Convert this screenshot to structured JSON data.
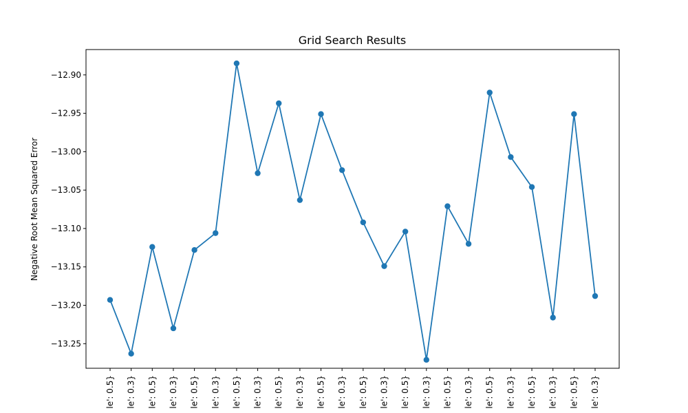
{
  "chart_data": {
    "type": "line",
    "title": "Grid Search Results",
    "xlabel": "",
    "ylabel": "Negative Root Mean Squared Error",
    "ylim": [
      -13.282,
      -12.867
    ],
    "yticks": [
      "−12.90",
      "−12.95",
      "−13.00",
      "−13.05",
      "−13.10",
      "−13.15",
      "−13.20",
      "−13.25"
    ],
    "ytick_values": [
      -12.9,
      -12.95,
      -13.0,
      -13.05,
      -13.1,
      -13.15,
      -13.2,
      -13.25
    ],
    "categories": [
      "le': 0.5}",
      "le': 0.3}",
      "le': 0.5}",
      "le': 0.3}",
      "le': 0.5}",
      "le': 0.3}",
      "le': 0.5}",
      "le': 0.3}",
      "le': 0.5}",
      "le': 0.3}",
      "le': 0.5}",
      "le': 0.3}",
      "le': 0.5}",
      "le': 0.3}",
      "le': 0.5}",
      "le': 0.3}",
      "le': 0.5}",
      "le': 0.3}",
      "le': 0.5}",
      "le': 0.3}",
      "le': 0.5}",
      "le': 0.3}",
      "le': 0.5}",
      "le': 0.3}"
    ],
    "series": [
      {
        "color": "#1f77b4",
        "values": [
          -13.193,
          -13.263,
          -13.124,
          -13.23,
          -13.128,
          -13.106,
          -12.885,
          -13.028,
          -12.937,
          -13.063,
          -12.951,
          -13.024,
          -13.092,
          -13.149,
          -13.104,
          -13.271,
          -13.071,
          -13.12,
          -12.923,
          -13.007,
          -13.046,
          -13.216,
          -12.951,
          -13.188
        ]
      }
    ],
    "grid": false,
    "marker": "circle"
  }
}
